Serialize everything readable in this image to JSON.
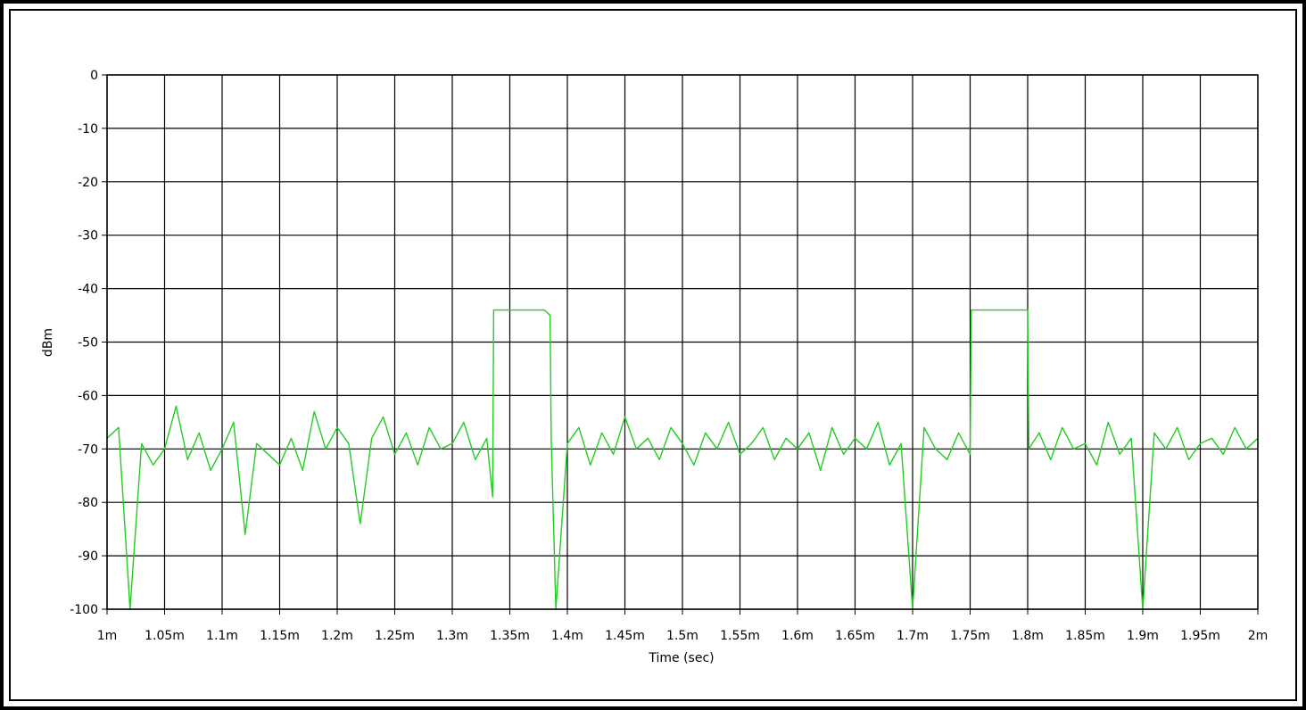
{
  "chart_data": {
    "type": "line",
    "title": "",
    "xlabel": "Time (sec)",
    "ylabel": "dBm",
    "xlim": [
      0.001,
      0.002
    ],
    "ylim": [
      -100,
      0
    ],
    "grid": true,
    "x_tick_labels": [
      "1m",
      "1.05m",
      "1.1m",
      "1.15m",
      "1.2m",
      "1.25m",
      "1.3m",
      "1.35m",
      "1.4m",
      "1.45m",
      "1.5m",
      "1.55m",
      "1.6m",
      "1.65m",
      "1.7m",
      "1.75m",
      "1.8m",
      "1.85m",
      "1.9m",
      "1.95m",
      "2m"
    ],
    "y_tick_labels": [
      "0",
      "-10",
      "-20",
      "-30",
      "-40",
      "-50",
      "-60",
      "-70",
      "-80",
      "-90",
      "-100"
    ],
    "x_tick_values": [
      0.001,
      0.00105,
      0.0011,
      0.00115,
      0.0012,
      0.00125,
      0.0013,
      0.00135,
      0.0014,
      0.00145,
      0.0015,
      0.00155,
      0.0016,
      0.00165,
      0.0017,
      0.00175,
      0.0018,
      0.00185,
      0.0019,
      0.00195,
      0.002
    ],
    "y_tick_values": [
      0,
      -10,
      -20,
      -30,
      -40,
      -50,
      -60,
      -70,
      -80,
      -90,
      -100
    ],
    "series": [
      {
        "color": "#22cc22",
        "x": [
          0.001,
          0.00101,
          0.00102,
          0.00103,
          0.00104,
          0.00105,
          0.00106,
          0.00107,
          0.00108,
          0.00109,
          0.0011,
          0.00111,
          0.00112,
          0.00113,
          0.00114,
          0.00115,
          0.00116,
          0.00117,
          0.00118,
          0.00119,
          0.0012,
          0.00121,
          0.00122,
          0.00123,
          0.00124,
          0.00125,
          0.00126,
          0.00127,
          0.00128,
          0.00129,
          0.0013,
          0.00131,
          0.00132,
          0.00133,
          0.001335,
          0.001336,
          0.00134,
          0.00135,
          0.00136,
          0.00137,
          0.00138,
          0.001385,
          0.001386,
          0.00139,
          0.0014,
          0.00141,
          0.00142,
          0.00143,
          0.00144,
          0.00145,
          0.00146,
          0.00147,
          0.00148,
          0.00149,
          0.0015,
          0.00151,
          0.00152,
          0.00153,
          0.00154,
          0.00155,
          0.00156,
          0.00157,
          0.00158,
          0.00159,
          0.0016,
          0.00161,
          0.00162,
          0.00163,
          0.00164,
          0.00165,
          0.00166,
          0.00167,
          0.00168,
          0.00169,
          0.0017,
          0.00171,
          0.00172,
          0.00173,
          0.00174,
          0.00175,
          0.001751,
          0.00176,
          0.00177,
          0.00178,
          0.00179,
          0.0018,
          0.001801,
          0.00181,
          0.00182,
          0.00183,
          0.00184,
          0.00185,
          0.00186,
          0.00187,
          0.00188,
          0.00189,
          0.0019,
          0.00191,
          0.00192,
          0.00193,
          0.00194,
          0.00195,
          0.00196,
          0.00197,
          0.00198,
          0.00199,
          0.002
        ],
        "y": [
          -68,
          -66,
          -100,
          -69,
          -73,
          -70,
          -62,
          -72,
          -67,
          -74,
          -70,
          -65,
          -86,
          -69,
          -71,
          -73,
          -68,
          -74,
          -63,
          -70,
          -66,
          -69,
          -84,
          -68,
          -64,
          -71,
          -67,
          -73,
          -66,
          -70,
          -69,
          -65,
          -72,
          -68,
          -79,
          -44,
          -44,
          -44,
          -44,
          -44,
          -44,
          -45,
          -68,
          -100,
          -69,
          -66,
          -73,
          -67,
          -71,
          -64,
          -70,
          -68,
          -72,
          -66,
          -69,
          -73,
          -67,
          -70,
          -65,
          -71,
          -69,
          -66,
          -72,
          -68,
          -70,
          -67,
          -74,
          -66,
          -71,
          -68,
          -70,
          -65,
          -73,
          -69,
          -100,
          -66,
          -70,
          -72,
          -67,
          -71,
          -44,
          -44,
          -44,
          -44,
          -44,
          -44,
          -70,
          -67,
          -72,
          -66,
          -70,
          -69,
          -73,
          -65,
          -71,
          -68,
          -100,
          -67,
          -70,
          -66,
          -72,
          -69,
          -68,
          -71,
          -66,
          -70,
          -68
        ]
      }
    ]
  }
}
